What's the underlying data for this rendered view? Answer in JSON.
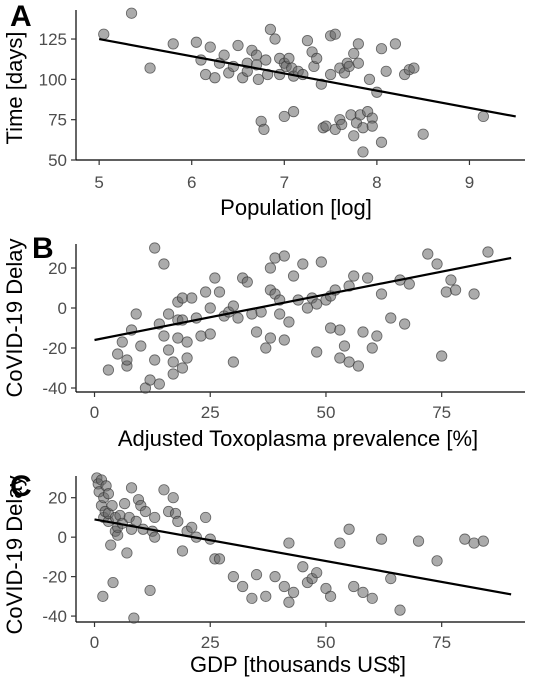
{
  "chart_data": [
    {
      "type": "scatter",
      "panel_label": "A",
      "xlabel": "Population [log]",
      "ylabel": "Time [days]",
      "xticks": [
        5,
        6,
        7,
        8,
        9
      ],
      "yticks": [
        50,
        75,
        100,
        125
      ],
      "xlim": [
        4.75,
        9.6
      ],
      "ylim": [
        50,
        143
      ],
      "trend": {
        "x": [
          5.0,
          9.5
        ],
        "y": [
          125,
          77
        ]
      },
      "points": [
        [
          5.05,
          128
        ],
        [
          5.35,
          141
        ],
        [
          5.55,
          107
        ],
        [
          5.8,
          122
        ],
        [
          6.05,
          123
        ],
        [
          6.1,
          112
        ],
        [
          6.15,
          103
        ],
        [
          6.2,
          120
        ],
        [
          6.25,
          101
        ],
        [
          6.3,
          110
        ],
        [
          6.35,
          115
        ],
        [
          6.4,
          104
        ],
        [
          6.45,
          108
        ],
        [
          6.5,
          121
        ],
        [
          6.55,
          101
        ],
        [
          6.6,
          110
        ],
        [
          6.6,
          105
        ],
        [
          6.65,
          118
        ],
        [
          6.7,
          115
        ],
        [
          6.7,
          109
        ],
        [
          6.72,
          100
        ],
        [
          6.75,
          74
        ],
        [
          6.78,
          69
        ],
        [
          6.8,
          112
        ],
        [
          6.82,
          103
        ],
        [
          6.85,
          131
        ],
        [
          6.9,
          125
        ],
        [
          6.95,
          113
        ],
        [
          6.95,
          103
        ],
        [
          7.0,
          77
        ],
        [
          7.0,
          110
        ],
        [
          7.02,
          108
        ],
        [
          7.05,
          113
        ],
        [
          7.08,
          107
        ],
        [
          7.1,
          80
        ],
        [
          7.1,
          102
        ],
        [
          7.15,
          105
        ],
        [
          7.2,
          103
        ],
        [
          7.25,
          124
        ],
        [
          7.3,
          117
        ],
        [
          7.32,
          108
        ],
        [
          7.35,
          113
        ],
        [
          7.4,
          97
        ],
        [
          7.42,
          70
        ],
        [
          7.45,
          71
        ],
        [
          7.5,
          127
        ],
        [
          7.5,
          103
        ],
        [
          7.55,
          128
        ],
        [
          7.55,
          69
        ],
        [
          7.6,
          107
        ],
        [
          7.6,
          75
        ],
        [
          7.62,
          72
        ],
        [
          7.65,
          104
        ],
        [
          7.68,
          110
        ],
        [
          7.7,
          108
        ],
        [
          7.72,
          78
        ],
        [
          7.75,
          116
        ],
        [
          7.75,
          65
        ],
        [
          7.78,
          73
        ],
        [
          7.8,
          122
        ],
        [
          7.8,
          110
        ],
        [
          7.82,
          78
        ],
        [
          7.85,
          70
        ],
        [
          7.85,
          55
        ],
        [
          7.9,
          80
        ],
        [
          7.92,
          100
        ],
        [
          7.95,
          76
        ],
        [
          7.95,
          71
        ],
        [
          8.0,
          92
        ],
        [
          8.05,
          119
        ],
        [
          8.05,
          61
        ],
        [
          8.1,
          105
        ],
        [
          8.2,
          122
        ],
        [
          8.3,
          103
        ],
        [
          8.35,
          106
        ],
        [
          8.4,
          107
        ],
        [
          8.5,
          66
        ],
        [
          9.15,
          77
        ]
      ]
    },
    {
      "type": "scatter",
      "panel_label": "B",
      "xlabel": "Adjusted Toxoplasma prevalence [%]",
      "ylabel": "CoVID-19 Delay",
      "xticks": [
        0,
        25,
        50,
        75
      ],
      "yticks": [
        -40,
        -20,
        0,
        20
      ],
      "xlim": [
        -4,
        93
      ],
      "ylim": [
        -42,
        32
      ],
      "trend": {
        "x": [
          0,
          90
        ],
        "y": [
          -16,
          25
        ]
      },
      "points": [
        [
          3,
          -31
        ],
        [
          5,
          -23
        ],
        [
          6,
          -17
        ],
        [
          7,
          -29
        ],
        [
          7,
          -26
        ],
        [
          8,
          -11
        ],
        [
          9,
          -3
        ],
        [
          10,
          -19
        ],
        [
          11,
          -40
        ],
        [
          12,
          -36
        ],
        [
          13,
          30
        ],
        [
          13,
          -26
        ],
        [
          14,
          -38
        ],
        [
          14,
          -8
        ],
        [
          15,
          22
        ],
        [
          15,
          -14
        ],
        [
          16,
          -21
        ],
        [
          16,
          -3
        ],
        [
          17,
          -33
        ],
        [
          17,
          -27
        ],
        [
          18,
          -15
        ],
        [
          18,
          -6
        ],
        [
          18,
          3
        ],
        [
          19,
          -6
        ],
        [
          19,
          -30
        ],
        [
          19,
          5
        ],
        [
          20,
          -25
        ],
        [
          20,
          -17
        ],
        [
          21,
          5
        ],
        [
          22,
          -5
        ],
        [
          23,
          -14
        ],
        [
          24,
          8
        ],
        [
          25,
          0
        ],
        [
          25,
          -13
        ],
        [
          26,
          15
        ],
        [
          27,
          8
        ],
        [
          28,
          -4
        ],
        [
          29,
          -2
        ],
        [
          30,
          1
        ],
        [
          30,
          -27
        ],
        [
          31,
          -5
        ],
        [
          32,
          15
        ],
        [
          33,
          13
        ],
        [
          34,
          -3
        ],
        [
          35,
          -12
        ],
        [
          36,
          -2
        ],
        [
          37,
          -20
        ],
        [
          38,
          20
        ],
        [
          38,
          -15
        ],
        [
          38,
          9
        ],
        [
          39,
          7
        ],
        [
          39,
          25
        ],
        [
          40,
          -3
        ],
        [
          40,
          4
        ],
        [
          41,
          26
        ],
        [
          41,
          -16
        ],
        [
          42,
          -7
        ],
        [
          43,
          16
        ],
        [
          44,
          4
        ],
        [
          45,
          22
        ],
        [
          46,
          0
        ],
        [
          47,
          5
        ],
        [
          48,
          -22
        ],
        [
          48,
          2
        ],
        [
          49,
          23
        ],
        [
          50,
          4
        ],
        [
          51,
          -10
        ],
        [
          51,
          6
        ],
        [
          52,
          9
        ],
        [
          53,
          -25
        ],
        [
          53,
          -11
        ],
        [
          54,
          -19
        ],
        [
          55,
          -27
        ],
        [
          55,
          11
        ],
        [
          56,
          16
        ],
        [
          57,
          -29
        ],
        [
          58,
          -12
        ],
        [
          59,
          15
        ],
        [
          60,
          -20
        ],
        [
          61,
          -14
        ],
        [
          62,
          7
        ],
        [
          64,
          -5
        ],
        [
          66,
          14
        ],
        [
          67,
          -8
        ],
        [
          68,
          12
        ],
        [
          72,
          27
        ],
        [
          74,
          22
        ],
        [
          75,
          -24
        ],
        [
          76,
          8
        ],
        [
          77,
          14
        ],
        [
          78,
          9
        ],
        [
          82,
          7
        ],
        [
          85,
          28
        ]
      ]
    },
    {
      "type": "scatter",
      "panel_label": "C",
      "xlabel": "GDP [thousands US$]",
      "ylabel": "CoVID-19 Delay",
      "xticks": [
        0,
        25,
        50,
        75
      ],
      "yticks": [
        -40,
        -20,
        0,
        20
      ],
      "xlim": [
        -4,
        93
      ],
      "ylim": [
        -43,
        31
      ],
      "trend": {
        "x": [
          0,
          90
        ],
        "y": [
          9,
          -29
        ]
      },
      "points": [
        [
          0.5,
          30
        ],
        [
          0.8,
          27
        ],
        [
          1,
          23
        ],
        [
          1.5,
          29
        ],
        [
          1.5,
          16
        ],
        [
          1.8,
          -30
        ],
        [
          2,
          20
        ],
        [
          2,
          10
        ],
        [
          2.3,
          13
        ],
        [
          2.5,
          26
        ],
        [
          3,
          8
        ],
        [
          3,
          12
        ],
        [
          3,
          22
        ],
        [
          3.5,
          -4
        ],
        [
          3.8,
          16
        ],
        [
          4,
          -23
        ],
        [
          4.5,
          3
        ],
        [
          4.5,
          10
        ],
        [
          5,
          1
        ],
        [
          5,
          5
        ],
        [
          5.5,
          11
        ],
        [
          6,
          7
        ],
        [
          6.5,
          17
        ],
        [
          7,
          -8
        ],
        [
          7.5,
          10
        ],
        [
          8,
          4
        ],
        [
          8,
          25
        ],
        [
          8.5,
          -41
        ],
        [
          9,
          8
        ],
        [
          9.5,
          19
        ],
        [
          10,
          16
        ],
        [
          10.5,
          4
        ],
        [
          11,
          13
        ],
        [
          12,
          -27
        ],
        [
          12.5,
          3
        ],
        [
          13,
          0
        ],
        [
          13,
          10
        ],
        [
          15,
          24
        ],
        [
          16,
          13
        ],
        [
          17,
          20
        ],
        [
          17.5,
          12
        ],
        [
          18,
          8
        ],
        [
          19,
          -7
        ],
        [
          20,
          3
        ],
        [
          21,
          5
        ],
        [
          22,
          0
        ],
        [
          24,
          10
        ],
        [
          25,
          -1
        ],
        [
          26,
          -11
        ],
        [
          27,
          -11
        ],
        [
          30,
          -20
        ],
        [
          32,
          -25
        ],
        [
          34,
          -31
        ],
        [
          35,
          -19
        ],
        [
          37,
          -30
        ],
        [
          39,
          -20
        ],
        [
          41,
          -25
        ],
        [
          42,
          -3
        ],
        [
          42,
          -33
        ],
        [
          43,
          -28
        ],
        [
          45,
          -15
        ],
        [
          46,
          -23
        ],
        [
          47,
          -21
        ],
        [
          48,
          -18
        ],
        [
          50,
          -26
        ],
        [
          51,
          -30
        ],
        [
          53,
          -3
        ],
        [
          55,
          4
        ],
        [
          56,
          -25
        ],
        [
          58,
          -28
        ],
        [
          60,
          -31
        ],
        [
          62,
          -1
        ],
        [
          64,
          -21
        ],
        [
          66,
          -37
        ],
        [
          70,
          -2
        ],
        [
          74,
          -12
        ],
        [
          80,
          -1
        ],
        [
          82,
          -3
        ],
        [
          84,
          -2
        ]
      ]
    }
  ]
}
